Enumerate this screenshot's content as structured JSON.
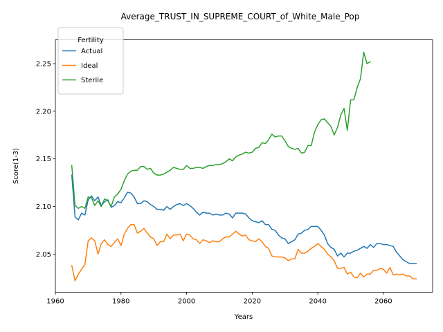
{
  "chart_data": {
    "type": "line",
    "title": "Average_TRUST_IN_SUPREME_COURT_of_White_Male_Pop",
    "xlabel": "Years",
    "ylabel": "Score(1-3)",
    "xlim": [
      1960,
      2075
    ],
    "ylim": [
      2.01,
      2.275
    ],
    "x_ticks": [
      1960,
      1980,
      2000,
      2020,
      2040,
      2060
    ],
    "y_ticks": [
      2.05,
      2.1,
      2.15,
      2.2,
      2.25
    ],
    "x_tick_labels": [
      "1960",
      "1980",
      "2000",
      "2020",
      "2040",
      "2060"
    ],
    "y_tick_labels": [
      "2.05",
      "2.10",
      "2.15",
      "2.20",
      "2.25"
    ],
    "grid": false,
    "legend": {
      "title": "Fertility",
      "placement": "top-left"
    },
    "series": [
      {
        "name": "Actual",
        "color": "#1f77b4",
        "points": [
          [
            1965,
            2.133
          ],
          [
            1966,
            2.089
          ],
          [
            1967,
            2.086
          ],
          [
            1968,
            2.093
          ],
          [
            1969,
            2.091
          ],
          [
            1970,
            2.107
          ],
          [
            1971,
            2.111
          ],
          [
            1972,
            2.106
          ],
          [
            1973,
            2.11
          ],
          [
            1974,
            2.101
          ],
          [
            1975,
            2.105
          ],
          [
            1976,
            2.107
          ],
          [
            1977,
            2.099
          ],
          [
            1978,
            2.101
          ],
          [
            1979,
            2.105
          ],
          [
            1980,
            2.104
          ],
          [
            1981,
            2.109
          ],
          [
            1982,
            2.115
          ],
          [
            1983,
            2.114
          ],
          [
            1984,
            2.11
          ],
          [
            1985,
            2.103
          ],
          [
            1986,
            2.103
          ],
          [
            1987,
            2.106
          ],
          [
            1988,
            2.105
          ],
          [
            1989,
            2.102
          ],
          [
            1990,
            2.1
          ],
          [
            1991,
            2.097
          ],
          [
            1992,
            2.097
          ],
          [
            1993,
            2.096
          ],
          [
            1994,
            2.1
          ],
          [
            1995,
            2.097
          ],
          [
            1996,
            2.1
          ],
          [
            1997,
            2.102
          ],
          [
            1998,
            2.103
          ],
          [
            1999,
            2.101
          ],
          [
            2000,
            2.103
          ],
          [
            2001,
            2.101
          ],
          [
            2002,
            2.098
          ],
          [
            2003,
            2.094
          ],
          [
            2004,
            2.091
          ],
          [
            2005,
            2.094
          ],
          [
            2006,
            2.093
          ],
          [
            2007,
            2.093
          ],
          [
            2008,
            2.091
          ],
          [
            2009,
            2.092
          ],
          [
            2010,
            2.091
          ],
          [
            2011,
            2.091
          ],
          [
            2012,
            2.093
          ],
          [
            2013,
            2.092
          ],
          [
            2014,
            2.088
          ],
          [
            2015,
            2.093
          ],
          [
            2016,
            2.093
          ],
          [
            2017,
            2.093
          ],
          [
            2018,
            2.092
          ],
          [
            2019,
            2.088
          ],
          [
            2020,
            2.085
          ],
          [
            2021,
            2.084
          ],
          [
            2022,
            2.083
          ],
          [
            2023,
            2.085
          ],
          [
            2024,
            2.081
          ],
          [
            2025,
            2.081
          ],
          [
            2026,
            2.076
          ],
          [
            2027,
            2.075
          ],
          [
            2028,
            2.07
          ],
          [
            2029,
            2.067
          ],
          [
            2030,
            2.066
          ],
          [
            2031,
            2.061
          ],
          [
            2032,
            2.063
          ],
          [
            2033,
            2.065
          ],
          [
            2034,
            2.071
          ],
          [
            2035,
            2.072
          ],
          [
            2036,
            2.075
          ],
          [
            2037,
            2.076
          ],
          [
            2038,
            2.079
          ],
          [
            2039,
            2.079
          ],
          [
            2040,
            2.079
          ],
          [
            2041,
            2.075
          ],
          [
            2042,
            2.07
          ],
          [
            2043,
            2.061
          ],
          [
            2044,
            2.057
          ],
          [
            2045,
            2.055
          ],
          [
            2046,
            2.048
          ],
          [
            2047,
            2.051
          ],
          [
            2048,
            2.047
          ],
          [
            2049,
            2.051
          ],
          [
            2050,
            2.051
          ],
          [
            2051,
            2.053
          ],
          [
            2052,
            2.054
          ],
          [
            2053,
            2.056
          ],
          [
            2054,
            2.058
          ],
          [
            2055,
            2.056
          ],
          [
            2056,
            2.06
          ],
          [
            2057,
            2.057
          ],
          [
            2058,
            2.061
          ],
          [
            2059,
            2.061
          ],
          [
            2060,
            2.06
          ],
          [
            2061,
            2.06
          ],
          [
            2062,
            2.059
          ],
          [
            2063,
            2.058
          ],
          [
            2064,
            2.052
          ],
          [
            2065,
            2.048
          ],
          [
            2066,
            2.044
          ],
          [
            2067,
            2.042
          ],
          [
            2068,
            2.04
          ],
          [
            2069,
            2.04
          ],
          [
            2070,
            2.04
          ]
        ]
      },
      {
        "name": "Ideal",
        "color": "#ff7f0e",
        "points": [
          [
            1965,
            2.038
          ],
          [
            1966,
            2.022
          ],
          [
            1967,
            2.029
          ],
          [
            1968,
            2.034
          ],
          [
            1969,
            2.039
          ],
          [
            1970,
            2.064
          ],
          [
            1971,
            2.067
          ],
          [
            1972,
            2.064
          ],
          [
            1973,
            2.05
          ],
          [
            1974,
            2.061
          ],
          [
            1975,
            2.065
          ],
          [
            1976,
            2.06
          ],
          [
            1977,
            2.058
          ],
          [
            1978,
            2.062
          ],
          [
            1979,
            2.066
          ],
          [
            1980,
            2.059
          ],
          [
            1981,
            2.071
          ],
          [
            1982,
            2.077
          ],
          [
            1983,
            2.081
          ],
          [
            1984,
            2.081
          ],
          [
            1985,
            2.072
          ],
          [
            1986,
            2.074
          ],
          [
            1987,
            2.077
          ],
          [
            1988,
            2.072
          ],
          [
            1989,
            2.068
          ],
          [
            1990,
            2.066
          ],
          [
            1991,
            2.059
          ],
          [
            1992,
            2.063
          ],
          [
            1993,
            2.063
          ],
          [
            1994,
            2.071
          ],
          [
            1995,
            2.066
          ],
          [
            1996,
            2.07
          ],
          [
            1997,
            2.07
          ],
          [
            1998,
            2.071
          ],
          [
            1999,
            2.064
          ],
          [
            2000,
            2.071
          ],
          [
            2001,
            2.07
          ],
          [
            2002,
            2.066
          ],
          [
            2003,
            2.065
          ],
          [
            2004,
            2.061
          ],
          [
            2005,
            2.065
          ],
          [
            2006,
            2.064
          ],
          [
            2007,
            2.062
          ],
          [
            2008,
            2.064
          ],
          [
            2009,
            2.063
          ],
          [
            2010,
            2.063
          ],
          [
            2011,
            2.066
          ],
          [
            2012,
            2.068
          ],
          [
            2013,
            2.068
          ],
          [
            2014,
            2.071
          ],
          [
            2015,
            2.074
          ],
          [
            2016,
            2.071
          ],
          [
            2017,
            2.069
          ],
          [
            2018,
            2.07
          ],
          [
            2019,
            2.065
          ],
          [
            2020,
            2.064
          ],
          [
            2021,
            2.063
          ],
          [
            2022,
            2.066
          ],
          [
            2023,
            2.063
          ],
          [
            2024,
            2.058
          ],
          [
            2025,
            2.056
          ],
          [
            2026,
            2.048
          ],
          [
            2027,
            2.047
          ],
          [
            2028,
            2.047
          ],
          [
            2029,
            2.047
          ],
          [
            2030,
            2.046
          ],
          [
            2031,
            2.043
          ],
          [
            2032,
            2.045
          ],
          [
            2033,
            2.045
          ],
          [
            2034,
            2.055
          ],
          [
            2035,
            2.051
          ],
          [
            2036,
            2.051
          ],
          [
            2037,
            2.053
          ],
          [
            2038,
            2.056
          ],
          [
            2039,
            2.058
          ],
          [
            2040,
            2.061
          ],
          [
            2041,
            2.058
          ],
          [
            2042,
            2.055
          ],
          [
            2043,
            2.05
          ],
          [
            2044,
            2.047
          ],
          [
            2045,
            2.043
          ],
          [
            2046,
            2.035
          ],
          [
            2047,
            2.035
          ],
          [
            2048,
            2.036
          ],
          [
            2049,
            2.029
          ],
          [
            2050,
            2.031
          ],
          [
            2051,
            2.026
          ],
          [
            2052,
            2.025
          ],
          [
            2053,
            2.03
          ],
          [
            2054,
            2.026
          ],
          [
            2055,
            2.029
          ],
          [
            2056,
            2.029
          ],
          [
            2057,
            2.033
          ],
          [
            2058,
            2.033
          ],
          [
            2059,
            2.035
          ],
          [
            2060,
            2.034
          ],
          [
            2061,
            2.03
          ],
          [
            2062,
            2.036
          ],
          [
            2063,
            2.028
          ],
          [
            2064,
            2.029
          ],
          [
            2065,
            2.028
          ],
          [
            2066,
            2.029
          ],
          [
            2067,
            2.027
          ],
          [
            2068,
            2.027
          ],
          [
            2069,
            2.024
          ],
          [
            2070,
            2.024
          ]
        ]
      },
      {
        "name": "Sterile",
        "color": "#2ca02c",
        "points": [
          [
            1965,
            2.143
          ],
          [
            1966,
            2.101
          ],
          [
            1967,
            2.098
          ],
          [
            1968,
            2.1
          ],
          [
            1969,
            2.098
          ],
          [
            1970,
            2.11
          ],
          [
            1971,
            2.109
          ],
          [
            1972,
            2.101
          ],
          [
            1973,
            2.106
          ],
          [
            1974,
            2.1
          ],
          [
            1975,
            2.108
          ],
          [
            1976,
            2.106
          ],
          [
            1977,
            2.1
          ],
          [
            1978,
            2.11
          ],
          [
            1979,
            2.113
          ],
          [
            1980,
            2.118
          ],
          [
            1981,
            2.127
          ],
          [
            1982,
            2.134
          ],
          [
            1983,
            2.137
          ],
          [
            1984,
            2.138
          ],
          [
            1985,
            2.138
          ],
          [
            1986,
            2.142
          ],
          [
            1987,
            2.142
          ],
          [
            1988,
            2.139
          ],
          [
            1989,
            2.14
          ],
          [
            1990,
            2.135
          ],
          [
            1991,
            2.133
          ],
          [
            1992,
            2.133
          ],
          [
            1993,
            2.134
          ],
          [
            1994,
            2.136
          ],
          [
            1995,
            2.138
          ],
          [
            1996,
            2.141
          ],
          [
            1997,
            2.14
          ],
          [
            1998,
            2.139
          ],
          [
            1999,
            2.139
          ],
          [
            2000,
            2.143
          ],
          [
            2001,
            2.14
          ],
          [
            2002,
            2.14
          ],
          [
            2003,
            2.141
          ],
          [
            2004,
            2.141
          ],
          [
            2005,
            2.14
          ],
          [
            2006,
            2.142
          ],
          [
            2007,
            2.143
          ],
          [
            2008,
            2.143
          ],
          [
            2009,
            2.144
          ],
          [
            2010,
            2.144
          ],
          [
            2011,
            2.145
          ],
          [
            2012,
            2.147
          ],
          [
            2013,
            2.15
          ],
          [
            2014,
            2.148
          ],
          [
            2015,
            2.152
          ],
          [
            2016,
            2.154
          ],
          [
            2017,
            2.155
          ],
          [
            2018,
            2.157
          ],
          [
            2019,
            2.156
          ],
          [
            2020,
            2.157
          ],
          [
            2021,
            2.161
          ],
          [
            2022,
            2.162
          ],
          [
            2023,
            2.167
          ],
          [
            2024,
            2.166
          ],
          [
            2025,
            2.17
          ],
          [
            2026,
            2.176
          ],
          [
            2027,
            2.173
          ],
          [
            2028,
            2.174
          ],
          [
            2029,
            2.174
          ],
          [
            2030,
            2.169
          ],
          [
            2031,
            2.163
          ],
          [
            2032,
            2.161
          ],
          [
            2033,
            2.16
          ],
          [
            2034,
            2.161
          ],
          [
            2035,
            2.156
          ],
          [
            2036,
            2.157
          ],
          [
            2037,
            2.164
          ],
          [
            2038,
            2.164
          ],
          [
            2039,
            2.178
          ],
          [
            2040,
            2.186
          ],
          [
            2041,
            2.191
          ],
          [
            2042,
            2.192
          ],
          [
            2043,
            2.188
          ],
          [
            2044,
            2.184
          ],
          [
            2045,
            2.175
          ],
          [
            2046,
            2.183
          ],
          [
            2047,
            2.196
          ],
          [
            2048,
            2.203
          ],
          [
            2049,
            2.18
          ],
          [
            2050,
            2.212
          ],
          [
            2051,
            2.212
          ],
          [
            2052,
            2.225
          ],
          [
            2053,
            2.234
          ],
          [
            2054,
            2.262
          ],
          [
            2055,
            2.25
          ],
          [
            2056,
            2.252
          ]
        ]
      }
    ]
  }
}
